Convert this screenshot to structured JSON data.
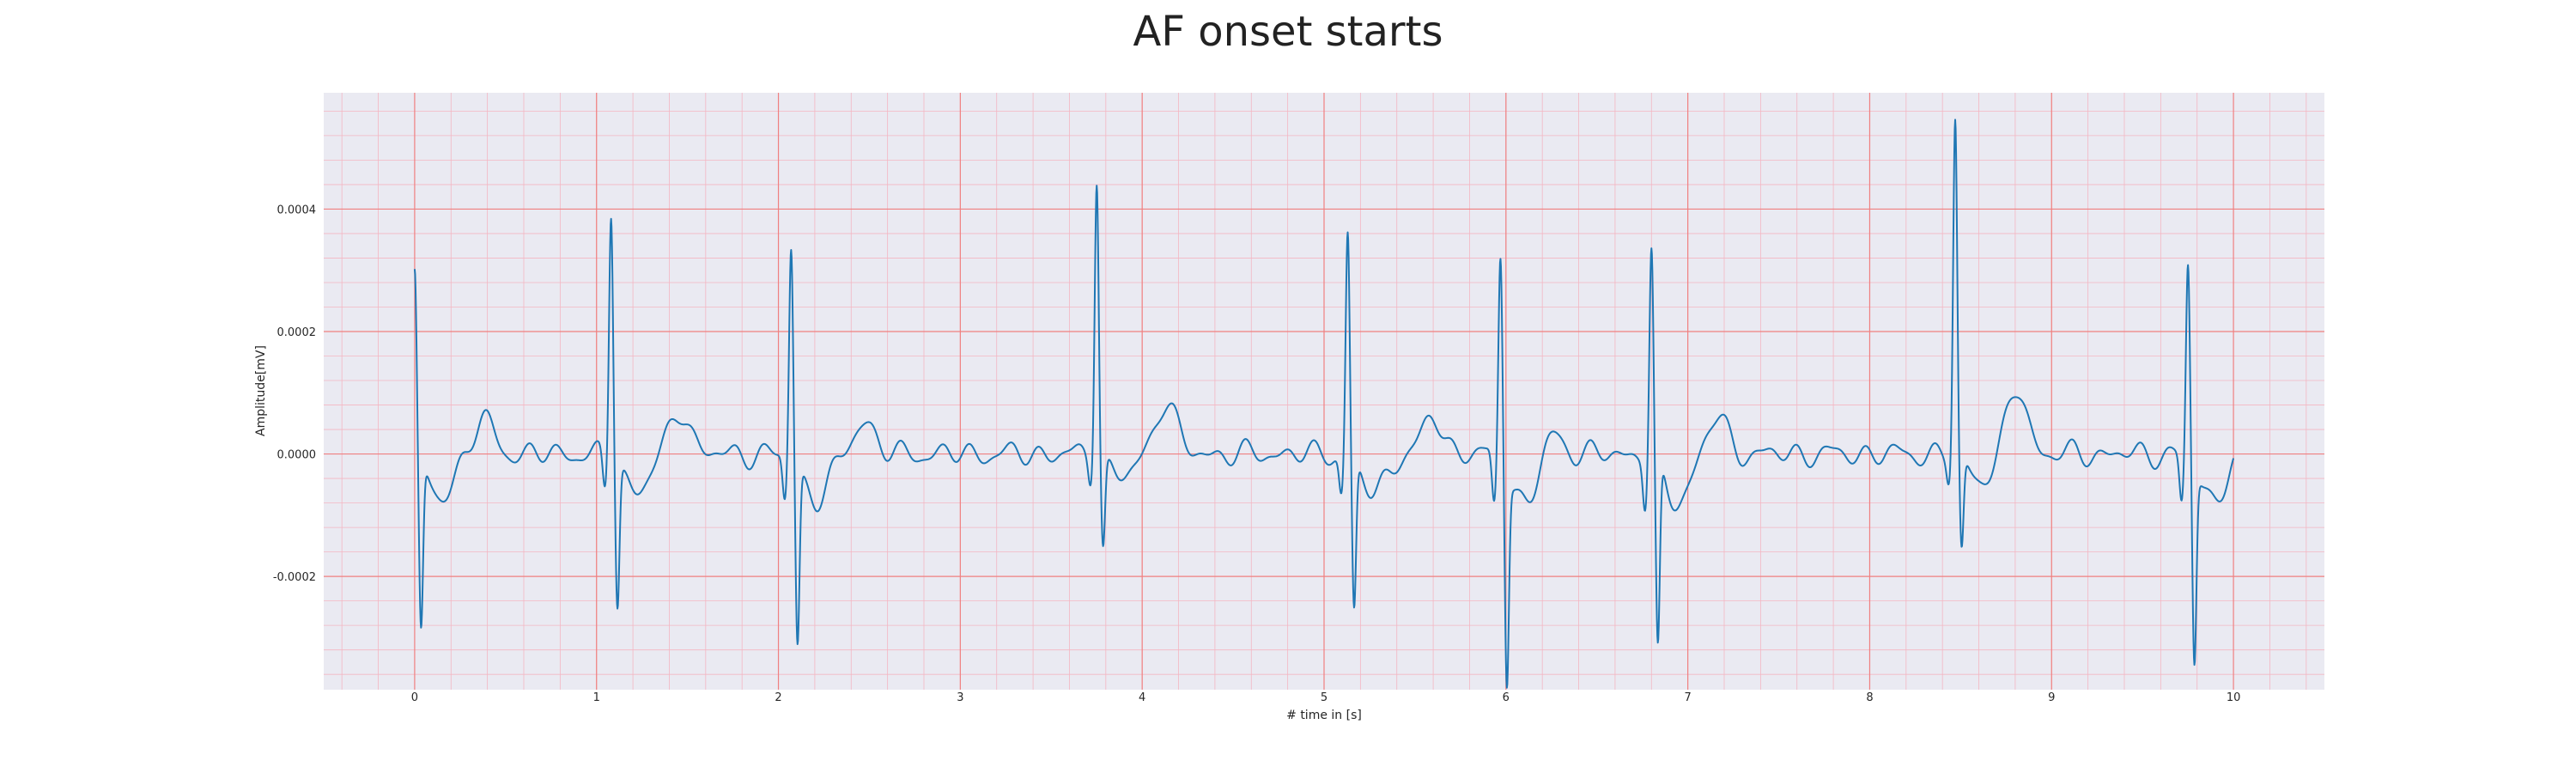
{
  "chart_data": {
    "type": "line",
    "title": "AF onset starts",
    "xlabel": "# time in [s]",
    "ylabel": "Amplitude[mV]",
    "xlim": [
      -0.5,
      10.5
    ],
    "ylim": [
      -0.000385,
      0.00059
    ],
    "x_ticks": [
      0,
      1,
      2,
      3,
      4,
      5,
      6,
      7,
      8,
      9,
      10
    ],
    "y_ticks": [
      -0.0002,
      0.0,
      0.0002,
      0.0004
    ],
    "x_tick_labels": [
      "0",
      "1",
      "2",
      "3",
      "4",
      "5",
      "6",
      "7",
      "8",
      "9",
      "10"
    ],
    "y_tick_labels": [
      "-0.0002",
      "0.0000",
      "0.0002",
      "0.0004"
    ],
    "grid": true,
    "minor_grid": true,
    "x_minor_step": 0.2,
    "y_minor_step": 4e-05,
    "colors": {
      "background": "#eaeaf2",
      "major_grid": "#f08080",
      "minor_grid": "#f4b6c2",
      "line": "#1f77b4"
    },
    "series": [
      {
        "beats": [
          {
            "r": 0.0,
            "r_amp": 0.000305,
            "s_amp": -0.00028,
            "t_amp": 5.5e-05,
            "t_offset": 0.38
          },
          {
            "r": 1.08,
            "r_amp": 0.00041,
            "s_amp": -0.00023,
            "t_amp": 7.2e-05,
            "t_offset": 0.38
          },
          {
            "r": 2.07,
            "r_amp": 0.00035,
            "s_amp": -0.00029,
            "t_amp": 5.5e-05,
            "t_offset": 0.4
          },
          {
            "r": 3.75,
            "r_amp": 0.000465,
            "s_amp": -0.000145,
            "t_amp": 9e-05,
            "t_offset": 0.38
          },
          {
            "r": 5.13,
            "r_amp": 0.00037,
            "s_amp": -0.000245,
            "t_amp": 6e-05,
            "t_offset": 0.47
          },
          {
            "r": 5.97,
            "r_amp": 0.00034,
            "s_amp": -0.000335,
            "t_amp": 4e-05,
            "t_offset": 0.28
          },
          {
            "r": 6.8,
            "r_amp": 0.000345,
            "s_amp": -0.00031,
            "t_amp": 6e-05,
            "t_offset": 0.36
          },
          {
            "r": 8.47,
            "r_amp": 0.00055,
            "s_amp": -0.000155,
            "t_amp": 0.000107,
            "t_offset": 0.34
          },
          {
            "r": 9.75,
            "r_amp": 0.00032,
            "s_amp": -0.000315,
            "t_amp": 1e-05,
            "t_offset": 0.2
          }
        ],
        "x_end": 10.0,
        "baseline_amplitude": 1.2e-05
      }
    ]
  }
}
